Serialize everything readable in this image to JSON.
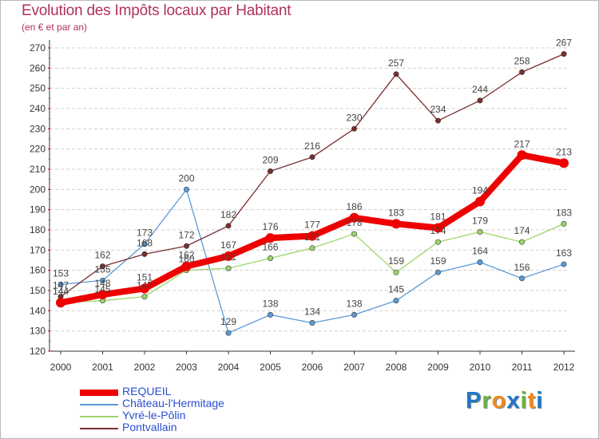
{
  "title": "Evolution des Impôts locaux par Habitant",
  "subtitle": "(en € et par an)",
  "logo": {
    "text": "Proxiti",
    "letters": [
      {
        "ch": "P",
        "color": "#1f77c8"
      },
      {
        "ch": "r",
        "color": "#6cb33f"
      },
      {
        "ch": "o",
        "color": "#f08a1a"
      },
      {
        "ch": "x",
        "color": "#1f77c8"
      },
      {
        "ch": "i",
        "color": "#6cb33f"
      },
      {
        "ch": "t",
        "color": "#f08a1a"
      },
      {
        "ch": "i",
        "color": "#1f77c8"
      }
    ]
  },
  "chart_data": {
    "type": "line",
    "title": "Evolution des Impôts locaux par Habitant",
    "subtitle": "(en € et par an)",
    "x": [
      "2000",
      "2001",
      "2002",
      "2003",
      "2004",
      "2005",
      "2006",
      "2007",
      "2008",
      "2009",
      "2010",
      "2011",
      "2012"
    ],
    "ylim": [
      120,
      270
    ],
    "yticks": [
      120,
      130,
      140,
      150,
      160,
      170,
      180,
      190,
      200,
      210,
      220,
      230,
      240,
      250,
      260,
      270
    ],
    "grid": "horizontal dashed",
    "legend_position": "bottom-left",
    "series": [
      {
        "name": "REQUEIL",
        "color": "#ee0000",
        "values": [
          144,
          148,
          151,
          162,
          167,
          176,
          177,
          186,
          183,
          181,
          194,
          217,
          213
        ]
      },
      {
        "name": "Château-l'Hermitage",
        "color": "#5b9bd5",
        "values": [
          153,
          155,
          173,
          200,
          129,
          138,
          134,
          138,
          145,
          159,
          164,
          156,
          163
        ]
      },
      {
        "name": "Yvré-le-Pôlin",
        "color": "#9cd56a",
        "values": [
          144,
          145,
          147,
          160,
          161,
          166,
          171,
          178,
          159,
          174,
          179,
          174,
          183
        ]
      },
      {
        "name": "Pontvallain",
        "color": "#7b2e2e",
        "values": [
          147,
          162,
          168,
          172,
          182,
          209,
          216,
          230,
          257,
          234,
          244,
          258,
          267
        ]
      }
    ]
  }
}
